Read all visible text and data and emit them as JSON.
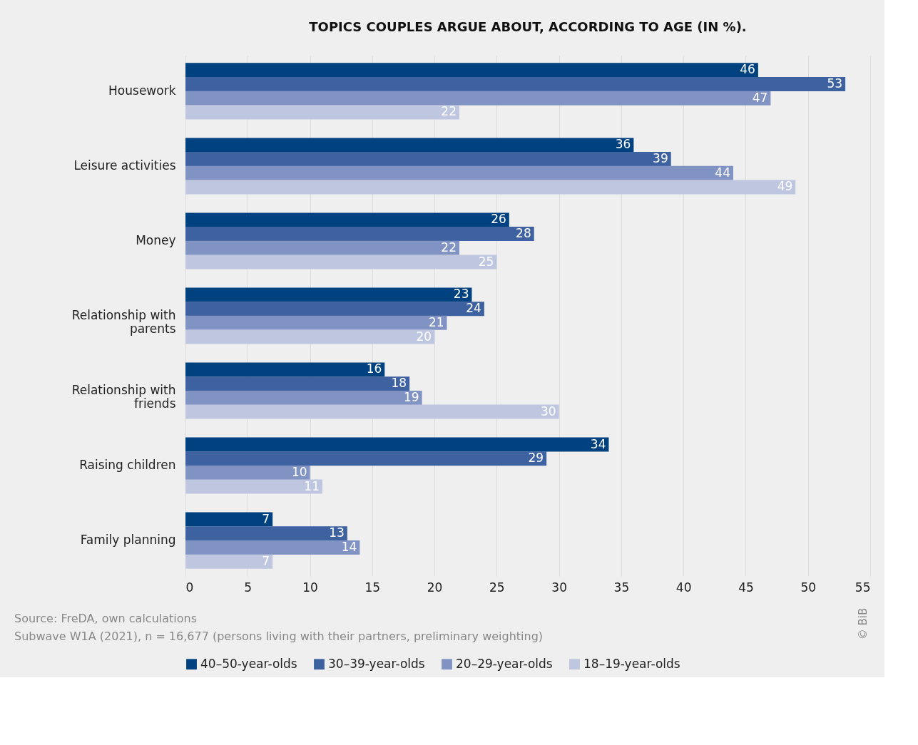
{
  "chart_data": {
    "type": "bar",
    "orientation": "horizontal",
    "title": "TOPICS COUPLES ARGUE ABOUT, ACCORDING TO AGE (IN %).",
    "categories": [
      "Housework",
      "Leisure activities",
      "Money",
      "Relationship with parents",
      "Relationship with friends",
      "Raising children",
      "Family planning"
    ],
    "series": [
      {
        "name": "40–50-year-olds",
        "color": "#00427f",
        "values": [
          46,
          36,
          26,
          23,
          16,
          34,
          7
        ]
      },
      {
        "name": "30–39-year-olds",
        "color": "#3e62a0",
        "values": [
          53,
          39,
          28,
          24,
          18,
          29,
          13
        ]
      },
      {
        "name": "20–29-year-olds",
        "color": "#8193c2",
        "values": [
          47,
          44,
          22,
          21,
          19,
          10,
          14
        ]
      },
      {
        "name": "18–19-year-olds",
        "color": "#bfc6e0",
        "values": [
          22,
          49,
          25,
          20,
          30,
          11,
          7
        ]
      }
    ],
    "xlim": [
      0,
      55
    ],
    "xticks": [
      0,
      5,
      10,
      15,
      20,
      25,
      30,
      35,
      40,
      45,
      50,
      55
    ],
    "grid": "x",
    "legend": "bottom",
    "data_labels": true,
    "annotations": [
      "Source: FreDA, own calculations",
      "Subwave W1A (2021), n = 16,677 (persons living with their partners, preliminary weighting)",
      "© BiB"
    ]
  }
}
